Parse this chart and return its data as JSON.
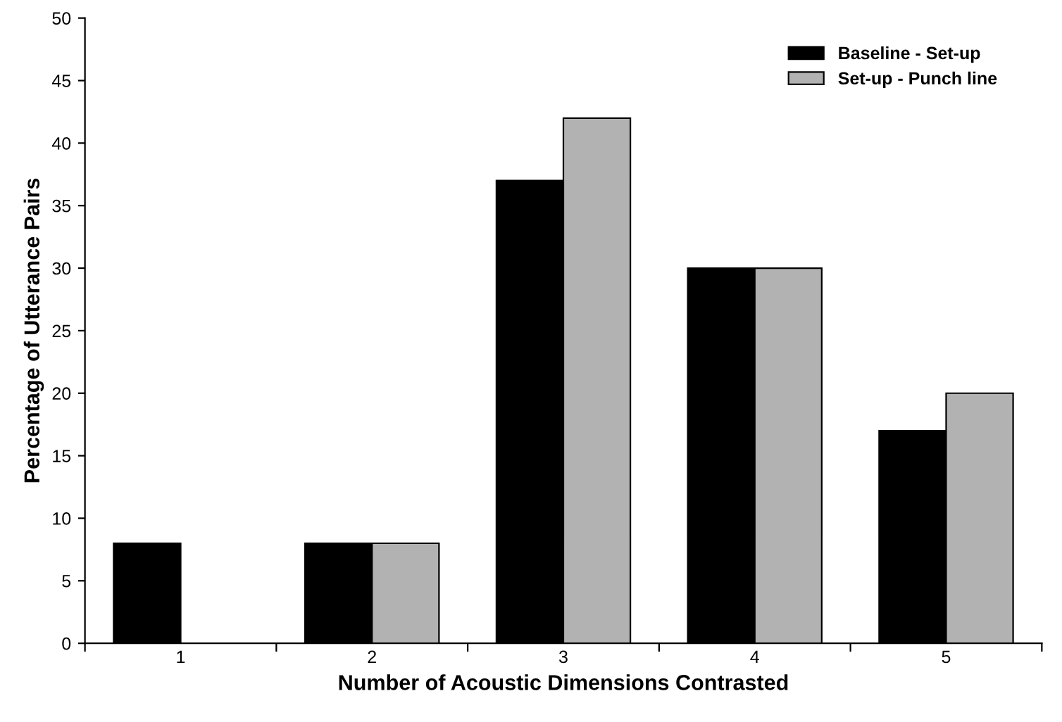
{
  "chart_data": {
    "type": "bar",
    "xlabel": "Number of Acoustic Dimensions Contrasted",
    "ylabel": "Percentage of Utterance Pairs",
    "categories": [
      "1",
      "2",
      "3",
      "4",
      "5"
    ],
    "series": [
      {
        "name": "Baseline - Set-up",
        "color": "#000000",
        "values": [
          8,
          8,
          37,
          30,
          17
        ]
      },
      {
        "name": "Set-up - Punch line",
        "color": "#b2b2b2",
        "values": [
          null,
          8,
          42,
          30,
          20
        ]
      }
    ],
    "ylim": [
      0,
      50
    ],
    "yticks": [
      0,
      5,
      10,
      15,
      20,
      25,
      30,
      35,
      40,
      45,
      50
    ],
    "grid": false,
    "legend": "top right"
  }
}
